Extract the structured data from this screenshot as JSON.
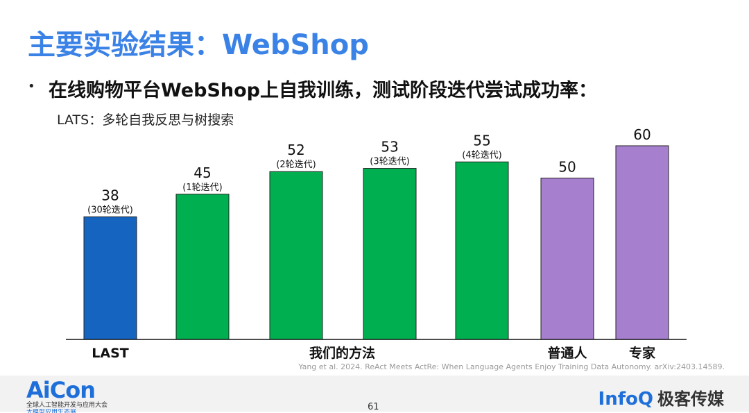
{
  "slide": {
    "title": "主要实验结果：WebShop",
    "bullet_text": "在线购物平台WebShop上自我训练，测试阶段迭代尝试成功率：",
    "subline": "LATS：多轮自我反思与树搜索",
    "citation": "Yang et al. 2024. ReAct Meets ActRe: When Language Agents Enjoy Training Data Autonomy. arXiv:2403.14589.",
    "page_number": "61"
  },
  "footer": {
    "aicon_logo": "AiCon",
    "aicon_subtitle": "全球人工智能开发与应用大会",
    "aicon_subtitle2": "大模型应用生态展",
    "infoq_logo": "InfoQ",
    "infoq_cn": "极客传媒"
  },
  "chart_data": {
    "type": "bar",
    "ylim": [
      0,
      60
    ],
    "bars": [
      {
        "value": 38,
        "value_label": "38",
        "sublabel": "(30轮迭代)",
        "color": "#1565c0"
      },
      {
        "value": 45,
        "value_label": "45",
        "sublabel": "(1轮迭代)",
        "color": "#00b050"
      },
      {
        "value": 52,
        "value_label": "52",
        "sublabel": "(2轮迭代)",
        "color": "#00b050"
      },
      {
        "value": 53,
        "value_label": "53",
        "sublabel": "(3轮迭代)",
        "color": "#00b050"
      },
      {
        "value": 55,
        "value_label": "55",
        "sublabel": "(4轮迭代)",
        "color": "#00b050"
      },
      {
        "value": 50,
        "value_label": "50",
        "sublabel": "",
        "color": "#a67fce"
      },
      {
        "value": 60,
        "value_label": "60",
        "sublabel": "",
        "color": "#a67fce"
      }
    ],
    "groups": [
      {
        "label": "LAST",
        "from": 0,
        "to": 0
      },
      {
        "label": "我们的方法",
        "from": 1,
        "to": 4
      },
      {
        "label": "普通人",
        "from": 5,
        "to": 5
      },
      {
        "label": "专家",
        "from": 6,
        "to": 6
      }
    ]
  }
}
